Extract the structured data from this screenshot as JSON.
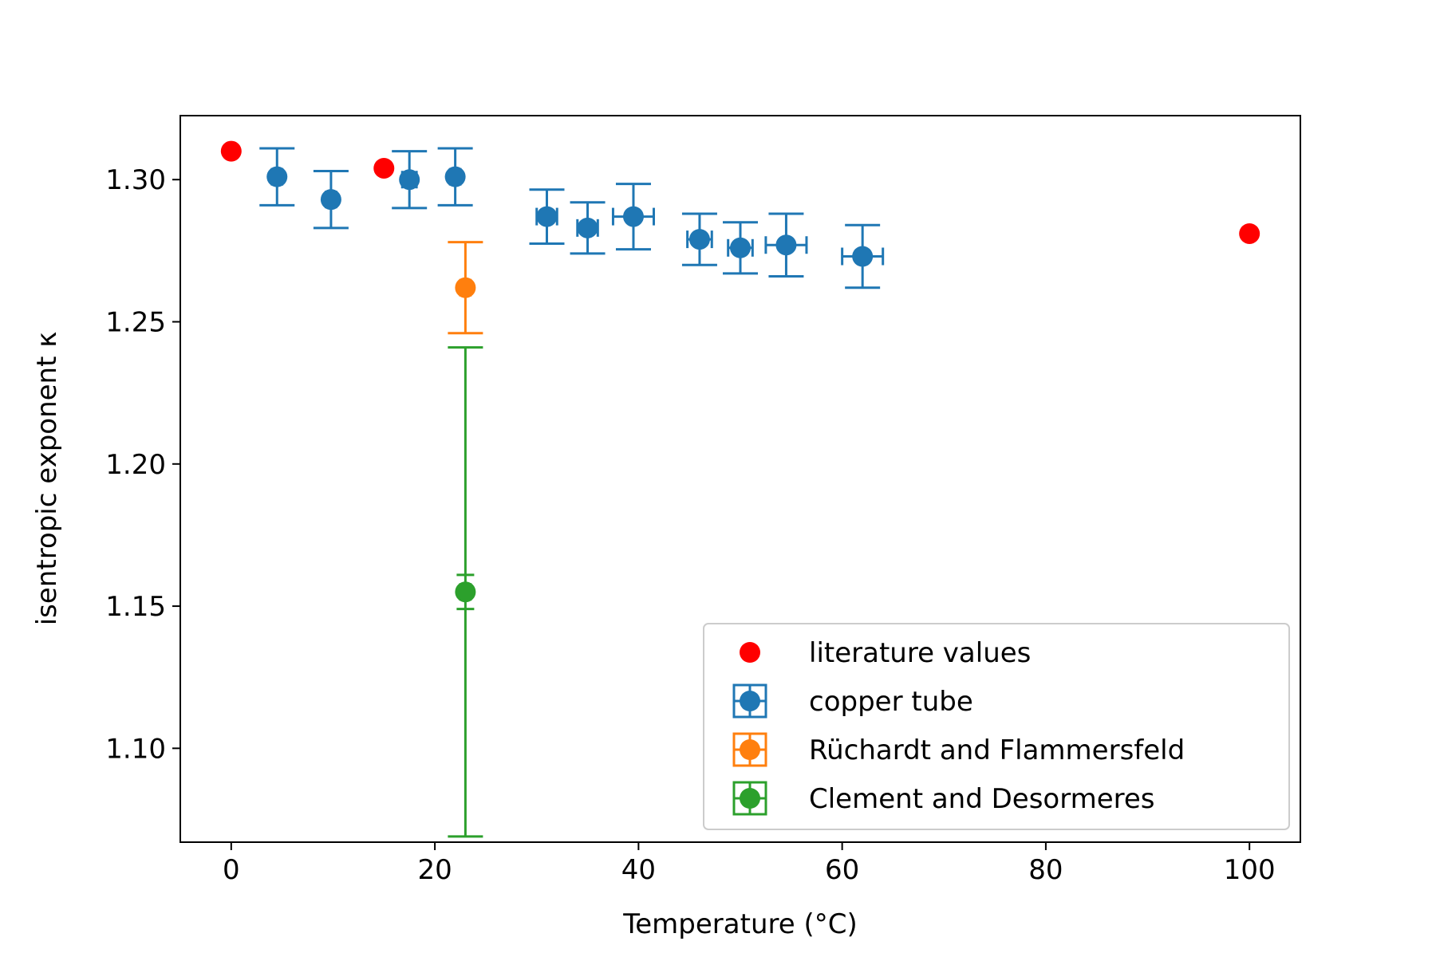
{
  "chart_data": {
    "type": "scatter",
    "title": "",
    "xlabel": "Temperature (°C)",
    "ylabel": "isentropic exponent κ",
    "xlim": [
      -5,
      105
    ],
    "ylim": [
      1.067,
      1.3225
    ],
    "x_ticks": [
      0,
      20,
      40,
      60,
      80,
      100
    ],
    "x_tick_labels": [
      "0",
      "20",
      "40",
      "60",
      "80",
      "100"
    ],
    "y_ticks": [
      1.1,
      1.15,
      1.2,
      1.25,
      1.3
    ],
    "y_tick_labels": [
      "1.10",
      "1.15",
      "1.20",
      "1.25",
      "1.30"
    ],
    "grid": false,
    "legend_position": "bottom-right",
    "series": [
      {
        "name": "literature values",
        "color": "#ff0000",
        "marker": "dot",
        "errorbars": false,
        "points": [
          {
            "x": 0,
            "y": 1.31
          },
          {
            "x": 15,
            "y": 1.304
          },
          {
            "x": 100,
            "y": 1.281
          }
        ]
      },
      {
        "name": "copper tube",
        "color": "#1f77b4",
        "marker": "dot",
        "errorbars": true,
        "points": [
          {
            "x": 4.5,
            "y": 1.301,
            "yerr": 0.01,
            "xerr": 0.5
          },
          {
            "x": 9.8,
            "y": 1.293,
            "yerr": 0.01,
            "xerr": 0.5
          },
          {
            "x": 17.5,
            "y": 1.3,
            "yerr": 0.01,
            "xerr": 0.7
          },
          {
            "x": 22.0,
            "y": 1.301,
            "yerr": 0.01,
            "xerr": 0.5
          },
          {
            "x": 31.0,
            "y": 1.287,
            "yerr": 0.0095,
            "xerr": 1.0
          },
          {
            "x": 35.0,
            "y": 1.283,
            "yerr": 0.009,
            "xerr": 1.0
          },
          {
            "x": 39.5,
            "y": 1.287,
            "yerr": 0.0115,
            "xerr": 2.0
          },
          {
            "x": 46.0,
            "y": 1.279,
            "yerr": 0.009,
            "xerr": 1.2
          },
          {
            "x": 50.0,
            "y": 1.276,
            "yerr": 0.009,
            "xerr": 1.2
          },
          {
            "x": 54.5,
            "y": 1.277,
            "yerr": 0.011,
            "xerr": 2.0
          },
          {
            "x": 62.0,
            "y": 1.273,
            "yerr": 0.011,
            "xerr": 2.0
          }
        ]
      },
      {
        "name": "Rüchardt and Flammersfeld",
        "color": "#ff7f0e",
        "marker": "dot",
        "errorbars": true,
        "points": [
          {
            "x": 23.0,
            "y": 1.262,
            "yerr": 0.016,
            "xerr": 0.5
          }
        ]
      },
      {
        "name": "Clement and Desormeres",
        "color": "#2ca02c",
        "marker": "dot",
        "errorbars": true,
        "points": [
          {
            "x": 23.0,
            "y": 1.155,
            "yerr": 0.086,
            "xerr": 0.5,
            "yerr_inner": 0.006
          }
        ]
      }
    ]
  }
}
